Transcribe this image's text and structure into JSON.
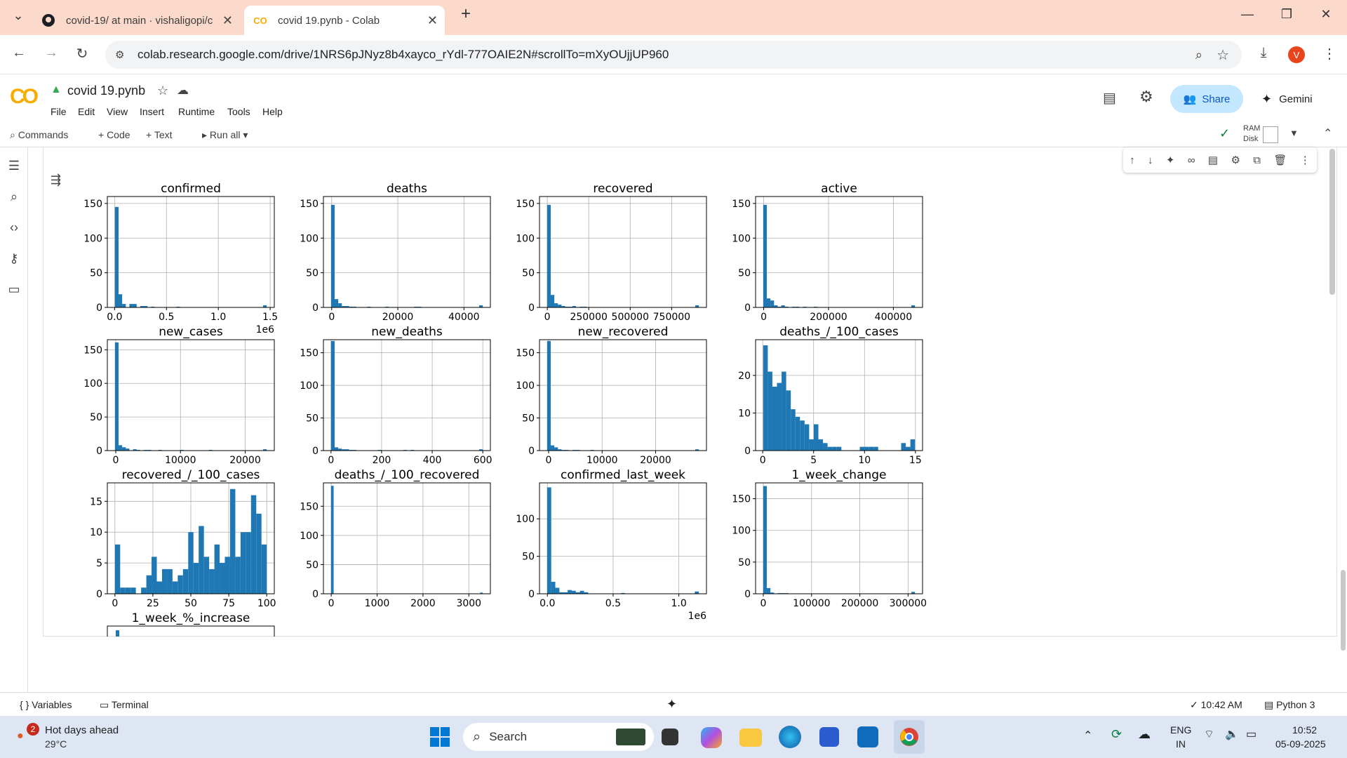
{
  "browser": {
    "tabs": [
      {
        "label": "covid-19/ at main · vishaligopi/c",
        "active": false,
        "icon": "github-icon"
      },
      {
        "label": "covid 19.pynb - Colab",
        "active": true,
        "icon": "colab-icon"
      }
    ],
    "url": "colab.research.google.com/drive/1NRS6pJNyz8b4xayco_rYdl-777OAIE2N#scrollTo=mXyOUjjUP960",
    "profile_initial": "V"
  },
  "colab": {
    "title": "covid 19.pynb",
    "menus": [
      "File",
      "Edit",
      "View",
      "Insert",
      "Runtime",
      "Tools",
      "Help"
    ],
    "share_label": "Share",
    "gemini_label": "Gemini",
    "toolbar": {
      "commands": "Commands",
      "code": "+ Code",
      "text": "+ Text",
      "run_all": "Run all",
      "ram": "RAM",
      "disk": "Disk"
    },
    "accent": "#f9ab00"
  },
  "chart_data": {
    "type": "histogram-grid",
    "color": "#1f77b4",
    "panels": [
      {
        "title": "confirmed",
        "xticks": [
          "0.0",
          "0.5",
          "1.0",
          "1.5"
        ],
        "xtickvals": [
          0,
          0.5,
          1.0,
          1.5
        ],
        "xlim": [
          -0.07,
          1.54
        ],
        "offset": "1e6",
        "yticks": [
          0,
          50,
          100,
          150
        ],
        "ylim": [
          0,
          160
        ],
        "counts": [
          145,
          19,
          5,
          0,
          5,
          5,
          0,
          2,
          2,
          0,
          1,
          0,
          0,
          0,
          0,
          0,
          0,
          1,
          0,
          0,
          0,
          0,
          0,
          0,
          0,
          0,
          0,
          0,
          0,
          0,
          0,
          0,
          0,
          0,
          0,
          0,
          0,
          0,
          0,
          0,
          0,
          3
        ]
      },
      {
        "title": "deaths",
        "xticks": [
          "0",
          "20000",
          "40000"
        ],
        "xtickvals": [
          0,
          20000,
          40000
        ],
        "xlim": [
          -2500,
          48000
        ],
        "yticks": [
          0,
          50,
          100,
          150
        ],
        "ylim": [
          0,
          160
        ],
        "counts": [
          148,
          12,
          6,
          2,
          2,
          1,
          1,
          0,
          0,
          0,
          1,
          0,
          0,
          0,
          0,
          1,
          0,
          0,
          0,
          0,
          0,
          0,
          0,
          1,
          1,
          0,
          0,
          0,
          0,
          0,
          0,
          0,
          0,
          0,
          0,
          0,
          0,
          0,
          0,
          0,
          0,
          3
        ]
      },
      {
        "title": "recovered",
        "xticks": [
          "0",
          "250000",
          "500000",
          "750000"
        ],
        "xtickvals": [
          0,
          250000,
          500000,
          750000
        ],
        "xlim": [
          -47000,
          960000
        ],
        "yticks": [
          0,
          50,
          100,
          150
        ],
        "ylim": [
          0,
          160
        ],
        "counts": [
          148,
          18,
          6,
          4,
          2,
          1,
          1,
          2,
          0,
          1,
          1,
          0,
          0,
          0,
          0,
          0,
          0,
          0,
          0,
          0,
          0,
          0,
          0,
          0,
          0,
          0,
          0,
          0,
          0,
          0,
          0,
          0,
          0,
          0,
          0,
          0,
          0,
          0,
          0,
          0,
          0,
          3
        ]
      },
      {
        "title": "active",
        "xticks": [
          "0",
          "200000",
          "400000"
        ],
        "xtickvals": [
          0,
          200000,
          400000
        ],
        "xlim": [
          -25000,
          490000
        ],
        "yticks": [
          0,
          50,
          100,
          150
        ],
        "ylim": [
          0,
          160
        ],
        "counts": [
          148,
          13,
          10,
          3,
          1,
          3,
          1,
          0,
          1,
          1,
          0,
          1,
          0,
          0,
          1,
          0,
          0,
          0,
          0,
          0,
          0,
          0,
          0,
          0,
          0,
          0,
          0,
          0,
          0,
          0,
          0,
          0,
          0,
          0,
          0,
          0,
          0,
          0,
          0,
          0,
          0,
          3
        ]
      },
      {
        "title": "new_cases",
        "xticks": [
          "0",
          "10000",
          "20000"
        ],
        "xtickvals": [
          0,
          10000,
          20000
        ],
        "xlim": [
          -1300,
          24500
        ],
        "yticks": [
          0,
          50,
          100,
          150
        ],
        "ylim": [
          0,
          165
        ],
        "counts": [
          161,
          8,
          5,
          3,
          0,
          2,
          1,
          0,
          1,
          1,
          0,
          0,
          1,
          0,
          0,
          0,
          0,
          0,
          1,
          0,
          0,
          0,
          0,
          0,
          0,
          0,
          1,
          0,
          0,
          0,
          0,
          0,
          0,
          0,
          0,
          0,
          0,
          0,
          0,
          0,
          0,
          2
        ]
      },
      {
        "title": "new_deaths",
        "xticks": [
          "0",
          "200",
          "400",
          "600"
        ],
        "xtickvals": [
          0,
          200,
          400,
          600
        ],
        "xlim": [
          -30,
          630
        ],
        "yticks": [
          0,
          50,
          100,
          150
        ],
        "ylim": [
          0,
          170
        ],
        "counts": [
          168,
          5,
          3,
          2,
          2,
          1,
          1,
          0,
          0,
          0,
          0,
          0,
          0,
          1,
          0,
          0,
          0,
          0,
          0,
          0,
          1,
          0,
          1,
          0,
          0,
          0,
          0,
          0,
          0,
          0,
          0,
          0,
          0,
          0,
          0,
          0,
          0,
          0,
          0,
          0,
          0,
          2
        ]
      },
      {
        "title": "new_recovered",
        "xticks": [
          "0",
          "10000",
          "20000"
        ],
        "xtickvals": [
          0,
          10000,
          20000
        ],
        "xlim": [
          -1700,
          29500
        ],
        "yticks": [
          0,
          50,
          100,
          150
        ],
        "ylim": [
          0,
          170
        ],
        "counts": [
          168,
          8,
          5,
          2,
          1,
          1,
          0,
          1,
          1,
          0,
          0,
          0,
          1,
          0,
          0,
          0,
          0,
          0,
          0,
          0,
          0,
          0,
          0,
          0,
          0,
          0,
          0,
          0,
          0,
          0,
          0,
          0,
          0,
          0,
          0,
          0,
          0,
          0,
          0,
          0,
          0,
          2
        ]
      },
      {
        "title": "deaths_/_100_cases",
        "xticks": [
          "0",
          "5",
          "10",
          "15"
        ],
        "xtickvals": [
          0,
          5,
          10,
          15
        ],
        "xlim": [
          -0.7,
          15.7
        ],
        "yticks": [
          0,
          10,
          20
        ],
        "ylim": [
          0,
          29.5
        ],
        "counts": [
          28,
          21,
          17,
          18,
          21,
          16,
          11,
          9,
          8,
          7,
          3,
          7,
          3,
          2,
          1,
          1,
          1,
          0,
          0,
          0,
          0,
          1,
          1,
          1,
          1,
          0,
          0,
          0,
          0,
          0,
          2,
          1,
          3
        ]
      },
      {
        "title": "recovered_/_100_cases",
        "xticks": [
          "0",
          "25",
          "50",
          "75",
          "100"
        ],
        "xtickvals": [
          0,
          25,
          50,
          75,
          100
        ],
        "xlim": [
          -5,
          105
        ],
        "yticks": [
          0,
          5,
          10,
          15
        ],
        "ylim": [
          0,
          18
        ],
        "counts": [
          8,
          1,
          1,
          1,
          0,
          1,
          3,
          6,
          2,
          4,
          4,
          2,
          3,
          4,
          10,
          5,
          11,
          6,
          4,
          8,
          5,
          6,
          17,
          6,
          10,
          10,
          16,
          13,
          8
        ]
      },
      {
        "title": "deaths_/_100_recovered",
        "xticks": [
          "0",
          "1000",
          "2000",
          "3000"
        ],
        "xtickvals": [
          0,
          1000,
          2000,
          3000
        ],
        "xlim": [
          -170,
          3470
        ],
        "yticks": [
          0,
          50,
          100,
          150
        ],
        "ylim": [
          0,
          190
        ],
        "counts": [
          185,
          0,
          0,
          0,
          0,
          0,
          0,
          0,
          0,
          0,
          0,
          0,
          0,
          0,
          0,
          0,
          0,
          0,
          0,
          0,
          0,
          0,
          0,
          0,
          0,
          0,
          0,
          0,
          0,
          0,
          0,
          0,
          0,
          0,
          0,
          0,
          0,
          0,
          0,
          0,
          0,
          0,
          0,
          0,
          0,
          0,
          0,
          0,
          0,
          0,
          0,
          0,
          0,
          0,
          0,
          0,
          0,
          2
        ]
      },
      {
        "title": "confirmed_last_week",
        "xticks": [
          "0.0",
          "0.5",
          "1.0"
        ],
        "xtickvals": [
          0,
          0.5,
          1.0
        ],
        "xlim": [
          -0.06,
          1.21
        ],
        "offset": "1e6",
        "yticks": [
          0,
          50,
          100
        ],
        "ylim": [
          0,
          148
        ],
        "counts": [
          142,
          16,
          8,
          2,
          2,
          5,
          4,
          2,
          4,
          2,
          0,
          0,
          0,
          0,
          0,
          0,
          0,
          0,
          1,
          0,
          0,
          0,
          0,
          0,
          0,
          0,
          0,
          0,
          0,
          0,
          0,
          0,
          0,
          0,
          0,
          0,
          3
        ]
      },
      {
        "title": "1_week_change",
        "xticks": [
          "0",
          "100000",
          "200000",
          "300000"
        ],
        "xtickvals": [
          0,
          100000,
          200000,
          300000
        ],
        "xlim": [
          -16000,
          330000
        ],
        "yticks": [
          0,
          50,
          100,
          150
        ],
        "ylim": [
          0,
          175
        ],
        "counts": [
          170,
          9,
          2,
          0,
          1,
          1,
          1,
          0,
          0,
          0,
          0,
          0,
          0,
          0,
          0,
          0,
          0,
          0,
          0,
          0,
          0,
          0,
          0,
          0,
          0,
          0,
          0,
          0,
          0,
          0,
          0,
          0,
          0,
          0,
          0,
          0,
          0,
          0,
          0,
          0,
          0,
          3
        ]
      },
      {
        "title": "1_week_%_increase",
        "partial": true
      }
    ]
  },
  "status": {
    "variables": "Variables",
    "terminal": "Terminal",
    "time": "10:42 AM",
    "kernel": "Python 3"
  },
  "taskbar": {
    "weather_title": "Hot days ahead",
    "weather_temp": "29°C",
    "badge": "2",
    "search": "Search",
    "lang1": "ENG",
    "lang2": "IN",
    "clock_time": "10:52",
    "clock_date": "05-09-2025"
  }
}
